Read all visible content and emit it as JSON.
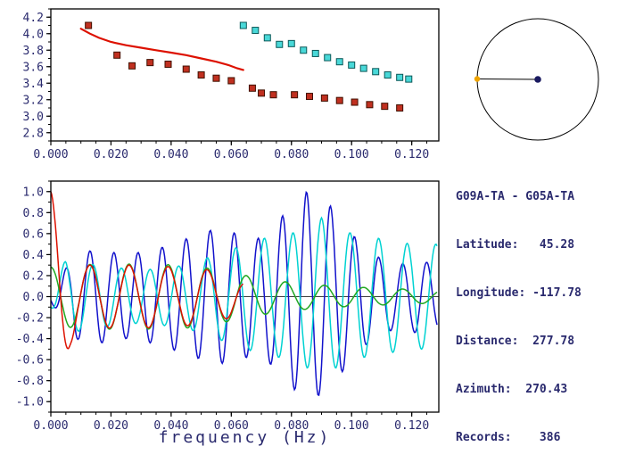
{
  "text_color": "#2a2a6e",
  "info": {
    "pair": "G09A-TA - G05A-TA",
    "lines": [
      "Latitude:   45.28",
      "Longitude: -117.78",
      "Distance:  277.78",
      "Azimuth:  270.43",
      "Records:    386"
    ]
  },
  "azimuth_plot": {
    "azimuth_deg": 270.43,
    "ring_color": "#000000",
    "station_dot_color": "#1a1a60",
    "event_dot_color": "#efa400"
  },
  "chart_data": [
    {
      "type": "scatter",
      "title": "",
      "xlabel": "",
      "ylabel": "",
      "xlim": [
        0,
        0.129
      ],
      "ylim": [
        2.7,
        4.3
      ],
      "xticks": [
        "0.000",
        "0.020",
        "0.040",
        "0.060",
        "0.080",
        "0.100",
        "0.120"
      ],
      "yticks": [
        "2.8",
        "3.0",
        "3.2",
        "3.4",
        "3.6",
        "3.8",
        "4.0",
        "4.2"
      ],
      "minor_xtick": 0.005,
      "minor_ytick": 0.1,
      "series": [
        {
          "name": "reference-dispersion-curve",
          "type": "line",
          "color": "#dd1100",
          "width": 2.2,
          "points": [
            [
              0.01,
              4.06
            ],
            [
              0.013,
              4.0
            ],
            [
              0.016,
              3.95
            ],
            [
              0.02,
              3.9
            ],
            [
              0.025,
              3.86
            ],
            [
              0.03,
              3.83
            ],
            [
              0.035,
              3.8
            ],
            [
              0.04,
              3.77
            ],
            [
              0.045,
              3.74
            ],
            [
              0.05,
              3.7
            ],
            [
              0.055,
              3.66
            ],
            [
              0.059,
              3.62
            ],
            [
              0.062,
              3.58
            ],
            [
              0.064,
              3.56
            ]
          ]
        },
        {
          "name": "group-velocity-picks",
          "type": "scatter",
          "color": "#c03020",
          "edge": "#401000",
          "points": [
            [
              0.0125,
              4.1
            ],
            [
              0.022,
              3.74
            ],
            [
              0.027,
              3.61
            ],
            [
              0.033,
              3.65
            ],
            [
              0.039,
              3.63
            ],
            [
              0.045,
              3.57
            ],
            [
              0.05,
              3.5
            ],
            [
              0.055,
              3.46
            ],
            [
              0.06,
              3.43
            ],
            [
              0.067,
              3.34
            ],
            [
              0.07,
              3.28
            ],
            [
              0.074,
              3.26
            ],
            [
              0.081,
              3.26
            ],
            [
              0.086,
              3.24
            ],
            [
              0.091,
              3.22
            ],
            [
              0.096,
              3.19
            ],
            [
              0.101,
              3.17
            ],
            [
              0.106,
              3.14
            ],
            [
              0.111,
              3.12
            ],
            [
              0.116,
              3.1
            ]
          ]
        },
        {
          "name": "second-branch-picks",
          "type": "scatter",
          "color": "#49d8d8",
          "edge": "#0c5858",
          "points": [
            [
              0.064,
              4.1
            ],
            [
              0.068,
              4.04
            ],
            [
              0.072,
              3.95
            ],
            [
              0.076,
              3.87
            ],
            [
              0.08,
              3.88
            ],
            [
              0.084,
              3.8
            ],
            [
              0.088,
              3.76
            ],
            [
              0.092,
              3.71
            ],
            [
              0.096,
              3.66
            ],
            [
              0.1,
              3.62
            ],
            [
              0.104,
              3.58
            ],
            [
              0.108,
              3.54
            ],
            [
              0.112,
              3.5
            ],
            [
              0.116,
              3.47
            ],
            [
              0.119,
              3.45
            ]
          ]
        }
      ]
    },
    {
      "type": "line",
      "title": "",
      "xlabel": "frequency (Hz)",
      "ylabel": "",
      "xlim": [
        0,
        0.129
      ],
      "ylim": [
        -1.1,
        1.1
      ],
      "xticks": [
        "0.000",
        "0.020",
        "0.040",
        "0.060",
        "0.080",
        "0.100",
        "0.120"
      ],
      "yticks": [
        "-1.0",
        "-0.8",
        "-0.6",
        "-0.4",
        "-0.2",
        "0.0",
        "0.2",
        "0.4",
        "0.6",
        "0.8",
        "1.0"
      ],
      "minor_xtick": 0.005,
      "minor_ytick": 0.1,
      "zero_line": true,
      "series": [
        {
          "name": "trace-blue",
          "type": "wave",
          "color": "#1212cc",
          "width": 1.5,
          "period": 0.008,
          "phase": -2.356,
          "xstart": 0,
          "xend": 0.1285,
          "envelope": [
            [
              0,
              0.05
            ],
            [
              0.008,
              0.4
            ],
            [
              0.015,
              0.45
            ],
            [
              0.025,
              0.4
            ],
            [
              0.035,
              0.45
            ],
            [
              0.045,
              0.55
            ],
            [
              0.055,
              0.65
            ],
            [
              0.062,
              0.6
            ],
            [
              0.07,
              0.55
            ],
            [
              0.078,
              0.8
            ],
            [
              0.085,
              1.0
            ],
            [
              0.092,
              0.9
            ],
            [
              0.1,
              0.6
            ],
            [
              0.107,
              0.4
            ],
            [
              0.115,
              0.3
            ],
            [
              0.122,
              0.35
            ],
            [
              0.1285,
              0.3
            ]
          ]
        },
        {
          "name": "trace-cyan",
          "type": "wave",
          "color": "#00d2d2",
          "width": 1.5,
          "period": 0.0095,
          "phase": -1.405,
          "xstart": 0,
          "xend": 0.1285,
          "envelope": [
            [
              0,
              0.1
            ],
            [
              0.005,
              0.35
            ],
            [
              0.015,
              0.3
            ],
            [
              0.03,
              0.25
            ],
            [
              0.045,
              0.3
            ],
            [
              0.06,
              0.45
            ],
            [
              0.07,
              0.55
            ],
            [
              0.08,
              0.6
            ],
            [
              0.09,
              0.75
            ],
            [
              0.1,
              0.6
            ],
            [
              0.11,
              0.55
            ],
            [
              0.12,
              0.5
            ],
            [
              0.1285,
              0.5
            ]
          ]
        },
        {
          "name": "trace-green",
          "type": "wave",
          "color": "#21a821",
          "width": 1.5,
          "period": 0.013,
          "phase": 1.5708,
          "xstart": 0,
          "xend": 0.1285,
          "envelope": [
            [
              0,
              0.28
            ],
            [
              0.015,
              0.31
            ],
            [
              0.03,
              0.31
            ],
            [
              0.045,
              0.3
            ],
            [
              0.055,
              0.26
            ],
            [
              0.065,
              0.2
            ],
            [
              0.075,
              0.15
            ],
            [
              0.085,
              0.12
            ],
            [
              0.095,
              0.1
            ],
            [
              0.11,
              0.08
            ],
            [
              0.1285,
              0.06
            ]
          ]
        },
        {
          "name": "trace-red",
          "type": "wave",
          "color": "#dd1100",
          "width": 1.5,
          "period": 0.013,
          "phase": 1.5708,
          "xstart": 0,
          "xend": 0.064,
          "envelope": [
            [
              0,
              1.0
            ],
            [
              0.003,
              0.82
            ],
            [
              0.0065,
              0.45
            ],
            [
              0.009,
              0.33
            ],
            [
              0.012,
              0.3
            ],
            [
              0.03,
              0.3
            ],
            [
              0.05,
              0.27
            ],
            [
              0.06,
              0.2
            ],
            [
              0.064,
              0.14
            ]
          ]
        }
      ]
    }
  ]
}
